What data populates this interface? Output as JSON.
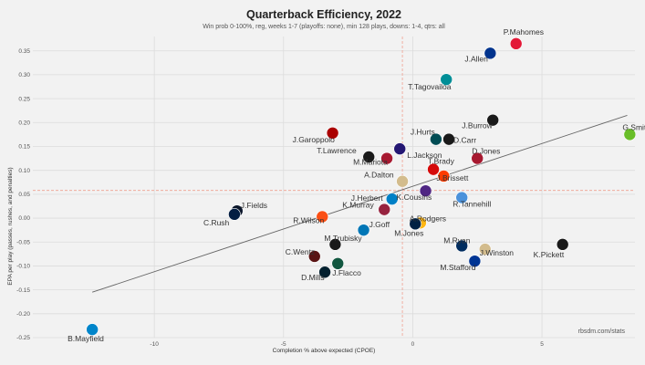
{
  "chart_data": {
    "type": "scatter",
    "title": "Quarterback Efficiency, 2022",
    "subtitle": "Win prob 0-100%, reg, weeks 1-7 (playoffs: none), min 128 plays, downs: 1-4, qtrs: all",
    "xlabel": "Completion % above expected (CPOE)",
    "ylabel": "EPA per play (passes, rushes, and penalties)",
    "credit": "rbsdm.com/stats",
    "xlim": [
      -14.7,
      8.6
    ],
    "ylim": [
      -0.25,
      0.38
    ],
    "x_ticks": [
      "-10",
      "-5",
      "0",
      "5"
    ],
    "x_tick_values": [
      -10,
      -5,
      0,
      5
    ],
    "y_ticks": [
      "-0.25",
      "-0.20",
      "-0.15",
      "-0.10",
      "-0.05",
      "0.00",
      "0.05",
      "0.10",
      "0.15",
      "0.20",
      "0.25",
      "0.30",
      "0.35"
    ],
    "y_tick_values": [
      -0.25,
      -0.2,
      -0.15,
      -0.1,
      -0.05,
      0.0,
      0.05,
      0.1,
      0.15,
      0.2,
      0.25,
      0.3,
      0.35
    ],
    "ref_x": -0.4,
    "ref_y": 0.058,
    "trend": {
      "x1": -12.4,
      "y1": -0.155,
      "x2": 8.3,
      "y2": 0.215
    },
    "points": [
      {
        "name": "P.Mahomes",
        "x": 4.0,
        "y": 0.365,
        "color": "#e31837"
      },
      {
        "name": "J.Allen",
        "x": 3.0,
        "y": 0.345,
        "color": "#00338d"
      },
      {
        "name": "T.Tagovailoa",
        "x": 1.3,
        "y": 0.29,
        "color": "#008e97"
      },
      {
        "name": "J.Burrow",
        "x": 3.1,
        "y": 0.205,
        "color": "#1a1a1a"
      },
      {
        "name": "G.Smith",
        "x": 8.4,
        "y": 0.175,
        "color": "#69be28"
      },
      {
        "name": "J.Garoppolo",
        "x": -3.1,
        "y": 0.178,
        "color": "#aa0000"
      },
      {
        "name": "J.Hurts",
        "x": 0.9,
        "y": 0.165,
        "color": "#004c54"
      },
      {
        "name": "D.Carr",
        "x": 1.4,
        "y": 0.165,
        "color": "#1a1a1a"
      },
      {
        "name": "L.Jackson",
        "x": -0.5,
        "y": 0.145,
        "color": "#241773"
      },
      {
        "name": "T.Lawrence",
        "x": -1.7,
        "y": 0.128,
        "color": "#1a1a1a"
      },
      {
        "name": "D.Jones",
        "x": 2.5,
        "y": 0.125,
        "color": "#a71930"
      },
      {
        "name": "M.Mariota",
        "x": -1.0,
        "y": 0.125,
        "color": "#a71930"
      },
      {
        "name": "T.Brady",
        "x": 0.8,
        "y": 0.102,
        "color": "#d50a0a"
      },
      {
        "name": "A.Dalton",
        "x": -0.4,
        "y": 0.077,
        "color": "#d3bc8d"
      },
      {
        "name": "J.Brissett",
        "x": 1.2,
        "y": 0.088,
        "color": "#ff3c00"
      },
      {
        "name": "K.Cousins",
        "x": 0.5,
        "y": 0.057,
        "color": "#4f2683"
      },
      {
        "name": "R.Tannehill",
        "x": 1.9,
        "y": 0.043,
        "color": "#4b92db"
      },
      {
        "name": "J.Herbert",
        "x": -0.8,
        "y": 0.04,
        "color": "#0080c6"
      },
      {
        "name": "J.Fields",
        "x": -6.8,
        "y": 0.015,
        "color": "#0b162a"
      },
      {
        "name": "K.Murray",
        "x": -1.1,
        "y": 0.018,
        "color": "#97233f"
      },
      {
        "name": "C.Rush",
        "x": -6.9,
        "y": 0.008,
        "color": "#041e42"
      },
      {
        "name": "R.Wilson",
        "x": -3.5,
        "y": 0.003,
        "color": "#fb4f14"
      },
      {
        "name": "A.Rodgers",
        "x": 0.3,
        "y": -0.01,
        "color": "#ffb612"
      },
      {
        "name": "J.Goff",
        "x": -1.9,
        "y": -0.025,
        "color": "#0076b6"
      },
      {
        "name": "M.Jones",
        "x": 0.1,
        "y": -0.012,
        "color": "#002244"
      },
      {
        "name": "M.Trubisky",
        "x": -3.0,
        "y": -0.055,
        "color": "#1a1a1a"
      },
      {
        "name": "M.Ryan",
        "x": 1.9,
        "y": -0.058,
        "color": "#002c5f"
      },
      {
        "name": "J.Winston",
        "x": 2.8,
        "y": -0.065,
        "color": "#d3bc8d"
      },
      {
        "name": "K.Pickett",
        "x": 5.8,
        "y": -0.055,
        "color": "#1a1a1a"
      },
      {
        "name": "C.Wentz",
        "x": -3.8,
        "y": -0.08,
        "color": "#5a1414"
      },
      {
        "name": "J.Flacco",
        "x": -2.9,
        "y": -0.095,
        "color": "#125740"
      },
      {
        "name": "M.Stafford",
        "x": 2.4,
        "y": -0.09,
        "color": "#003594"
      },
      {
        "name": "D.Mills",
        "x": -3.4,
        "y": -0.113,
        "color": "#03202f"
      },
      {
        "name": "B.Mayfield",
        "x": -12.4,
        "y": -0.233,
        "color": "#0085ca"
      }
    ]
  }
}
